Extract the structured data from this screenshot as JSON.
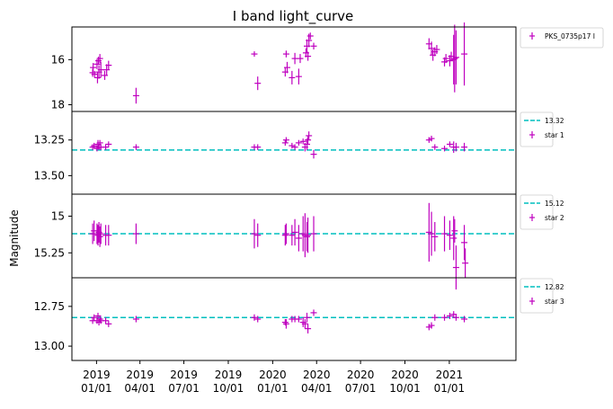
{
  "colors": {
    "data": "#bf00bf",
    "reference": "#00bfbf"
  },
  "chart_data": {
    "type": "scatter",
    "title": "I band light_curve",
    "ylabel": "Magnitude",
    "x_tick_labels": [
      {
        "date": "2019-01-01",
        "line1": "2019",
        "line2": "01/01"
      },
      {
        "date": "2019-04-01",
        "line1": "2019",
        "line2": "04/01"
      },
      {
        "date": "2019-07-01",
        "line1": "2019",
        "line2": "07/01"
      },
      {
        "date": "2019-10-01",
        "line1": "2019",
        "line2": "10/01"
      },
      {
        "date": "2020-01-01",
        "line1": "2020",
        "line2": "01/01"
      },
      {
        "date": "2020-04-01",
        "line1": "2020",
        "line2": "04/01"
      },
      {
        "date": "2020-07-01",
        "line1": "2020",
        "line2": "07/01"
      },
      {
        "date": "2020-10-01",
        "line1": "2020",
        "line2": "10/01"
      },
      {
        "date": "2021-01-01",
        "line1": "2021",
        "line2": "01/01"
      }
    ],
    "xlim": [
      "2018-11-11",
      "2021-05-19"
    ],
    "panels": [
      {
        "ylim": [
          18.3,
          14.55
        ],
        "yticks": [
          16,
          18
        ],
        "reference": null,
        "legend": [
          {
            "marker": "point",
            "label": "PKS_0735p17 I"
          }
        ],
        "points": [
          {
            "x": "2018-12-24",
            "y": 16.58,
            "err": 0.18
          },
          {
            "x": "2018-12-25",
            "y": 16.35,
            "err": 0.2
          },
          {
            "x": "2018-12-28",
            "y": 16.65,
            "err": 0.15
          },
          {
            "x": "2019-01-02",
            "y": 16.2,
            "err": 0.22
          },
          {
            "x": "2019-01-03",
            "y": 16.8,
            "err": 0.25
          },
          {
            "x": "2019-01-05",
            "y": 16.05,
            "err": 0.18
          },
          {
            "x": "2019-01-06",
            "y": 16.55,
            "err": 0.3
          },
          {
            "x": "2019-01-08",
            "y": 15.95,
            "err": 0.2
          },
          {
            "x": "2019-01-10",
            "y": 16.45,
            "err": 0.35
          },
          {
            "x": "2019-01-18",
            "y": 16.7,
            "err": 0.2
          },
          {
            "x": "2019-01-22",
            "y": 16.45,
            "err": 0.25
          },
          {
            "x": "2019-01-26",
            "y": 16.25,
            "err": 0.2
          },
          {
            "x": "2019-03-24",
            "y": 17.6,
            "err": 0.35
          },
          {
            "x": "2019-11-24",
            "y": 15.75,
            "err": 0.12
          },
          {
            "x": "2019-12-01",
            "y": 17.05,
            "err": 0.3
          },
          {
            "x": "2020-01-27",
            "y": 16.55,
            "err": 0.2
          },
          {
            "x": "2020-01-29",
            "y": 15.75,
            "err": 0.15
          },
          {
            "x": "2020-01-31",
            "y": 16.35,
            "err": 0.25
          },
          {
            "x": "2020-02-10",
            "y": 16.8,
            "err": 0.3
          },
          {
            "x": "2020-02-16",
            "y": 15.95,
            "err": 0.25
          },
          {
            "x": "2020-02-24",
            "y": 16.75,
            "err": 0.35
          },
          {
            "x": "2020-02-27",
            "y": 15.95,
            "err": 0.2
          },
          {
            "x": "2020-03-10",
            "y": 15.7,
            "err": 0.2
          },
          {
            "x": "2020-03-12",
            "y": 15.4,
            "err": 0.3
          },
          {
            "x": "2020-03-14",
            "y": 15.85,
            "err": 0.2
          },
          {
            "x": "2020-03-16",
            "y": 15.15,
            "err": 0.3
          },
          {
            "x": "2020-03-19",
            "y": 14.95,
            "err": 0.15
          },
          {
            "x": "2020-03-26",
            "y": 15.4,
            "err": 0.15
          },
          {
            "x": "2020-11-20",
            "y": 15.3,
            "err": 0.25
          },
          {
            "x": "2020-11-25",
            "y": 15.5,
            "err": 0.3
          },
          {
            "x": "2020-11-28",
            "y": 15.8,
            "err": 0.25
          },
          {
            "x": "2020-12-02",
            "y": 15.65,
            "err": 0.2
          },
          {
            "x": "2020-12-06",
            "y": 15.55,
            "err": 0.2
          },
          {
            "x": "2020-12-22",
            "y": 16.1,
            "err": 0.2
          },
          {
            "x": "2020-12-25",
            "y": 15.95,
            "err": 0.2
          },
          {
            "x": "2021-01-02",
            "y": 16.05,
            "err": 0.25
          },
          {
            "x": "2021-01-05",
            "y": 15.85,
            "err": 0.2
          },
          {
            "x": "2021-01-10",
            "y": 16.0,
            "err": 1.1
          },
          {
            "x": "2021-01-12",
            "y": 15.95,
            "err": 1.5
          },
          {
            "x": "2021-01-15",
            "y": 15.9,
            "err": 1.2
          },
          {
            "x": "2021-02-01",
            "y": 15.75,
            "err": 1.4
          }
        ]
      },
      {
        "ylim": [
          13.63,
          13.05
        ],
        "yticks": [
          13.25,
          13.5
        ],
        "reference": 13.32,
        "legend": [
          {
            "marker": "dash",
            "label": "13.32"
          },
          {
            "marker": "point",
            "label": "star 1"
          }
        ],
        "points": [
          {
            "x": "2018-12-24",
            "y": 13.3,
            "err": 0.02
          },
          {
            "x": "2018-12-27",
            "y": 13.29,
            "err": 0.02
          },
          {
            "x": "2019-01-02",
            "y": 13.31,
            "err": 0.02
          },
          {
            "x": "2019-01-04",
            "y": 13.28,
            "err": 0.03
          },
          {
            "x": "2019-01-06",
            "y": 13.3,
            "err": 0.02
          },
          {
            "x": "2019-01-08",
            "y": 13.27,
            "err": 0.02
          },
          {
            "x": "2019-01-10",
            "y": 13.3,
            "err": 0.02
          },
          {
            "x": "2019-01-20",
            "y": 13.3,
            "err": 0.02
          },
          {
            "x": "2019-01-26",
            "y": 13.28,
            "err": 0.02
          },
          {
            "x": "2019-03-24",
            "y": 13.3,
            "err": 0.02
          },
          {
            "x": "2019-11-24",
            "y": 13.3,
            "err": 0.02
          },
          {
            "x": "2019-12-01",
            "y": 13.3,
            "err": 0.02
          },
          {
            "x": "2020-01-27",
            "y": 13.27,
            "err": 0.02
          },
          {
            "x": "2020-01-29",
            "y": 13.25,
            "err": 0.02
          },
          {
            "x": "2020-02-10",
            "y": 13.29,
            "err": 0.02
          },
          {
            "x": "2020-02-16",
            "y": 13.3,
            "err": 0.02
          },
          {
            "x": "2020-02-24",
            "y": 13.27,
            "err": 0.02
          },
          {
            "x": "2020-03-04",
            "y": 13.26,
            "err": 0.02
          },
          {
            "x": "2020-03-08",
            "y": 13.3,
            "err": 0.03
          },
          {
            "x": "2020-03-12",
            "y": 13.28,
            "err": 0.04
          },
          {
            "x": "2020-03-14",
            "y": 13.25,
            "err": 0.03
          },
          {
            "x": "2020-03-16",
            "y": 13.22,
            "err": 0.03
          },
          {
            "x": "2020-03-26",
            "y": 13.35,
            "err": 0.03
          },
          {
            "x": "2020-11-20",
            "y": 13.25,
            "err": 0.02
          },
          {
            "x": "2020-11-25",
            "y": 13.24,
            "err": 0.02
          },
          {
            "x": "2020-12-02",
            "y": 13.3,
            "err": 0.02
          },
          {
            "x": "2020-12-22",
            "y": 13.31,
            "err": 0.02
          },
          {
            "x": "2021-01-02",
            "y": 13.28,
            "err": 0.02
          },
          {
            "x": "2021-01-10",
            "y": 13.3,
            "err": 0.04
          },
          {
            "x": "2021-01-15",
            "y": 13.3,
            "err": 0.03
          },
          {
            "x": "2021-02-01",
            "y": 13.3,
            "err": 0.03
          }
        ]
      },
      {
        "ylim": [
          15.42,
          14.85
        ],
        "yticks": [
          15.0,
          15.25
        ],
        "reference": 15.12,
        "legend": [
          {
            "marker": "dash",
            "label": "15.12"
          },
          {
            "marker": "point",
            "label": "star 2"
          }
        ],
        "points": [
          {
            "x": "2018-12-24",
            "y": 15.12,
            "err": 0.07
          },
          {
            "x": "2018-12-27",
            "y": 15.1,
            "err": 0.07
          },
          {
            "x": "2019-01-02",
            "y": 15.12,
            "err": 0.07
          },
          {
            "x": "2019-01-04",
            "y": 15.13,
            "err": 0.07
          },
          {
            "x": "2019-01-06",
            "y": 15.11,
            "err": 0.07
          },
          {
            "x": "2019-01-08",
            "y": 15.14,
            "err": 0.07
          },
          {
            "x": "2019-01-10",
            "y": 15.12,
            "err": 0.07
          },
          {
            "x": "2019-01-20",
            "y": 15.13,
            "err": 0.07
          },
          {
            "x": "2019-01-26",
            "y": 15.13,
            "err": 0.07
          },
          {
            "x": "2019-03-24",
            "y": 15.12,
            "err": 0.07
          },
          {
            "x": "2019-11-24",
            "y": 15.12,
            "err": 0.1
          },
          {
            "x": "2019-12-01",
            "y": 15.13,
            "err": 0.08
          },
          {
            "x": "2020-01-27",
            "y": 15.13,
            "err": 0.07
          },
          {
            "x": "2020-01-29",
            "y": 15.12,
            "err": 0.07
          },
          {
            "x": "2020-02-10",
            "y": 15.13,
            "err": 0.07
          },
          {
            "x": "2020-02-16",
            "y": 15.11,
            "err": 0.09
          },
          {
            "x": "2020-02-24",
            "y": 15.15,
            "err": 0.09
          },
          {
            "x": "2020-03-04",
            "y": 15.12,
            "err": 0.12
          },
          {
            "x": "2020-03-08",
            "y": 15.13,
            "err": 0.15
          },
          {
            "x": "2020-03-12",
            "y": 15.14,
            "err": 0.1
          },
          {
            "x": "2020-03-14",
            "y": 15.13,
            "err": 0.12
          },
          {
            "x": "2020-03-26",
            "y": 15.12,
            "err": 0.12
          },
          {
            "x": "2020-11-20",
            "y": 15.11,
            "err": 0.2
          },
          {
            "x": "2020-11-25",
            "y": 15.12,
            "err": 0.15
          },
          {
            "x": "2020-12-02",
            "y": 15.14,
            "err": 0.1
          },
          {
            "x": "2020-12-22",
            "y": 15.12,
            "err": 0.12
          },
          {
            "x": "2021-01-02",
            "y": 15.13,
            "err": 0.1
          },
          {
            "x": "2021-01-10",
            "y": 15.15,
            "err": 0.15
          },
          {
            "x": "2021-01-12",
            "y": 15.1,
            "err": 0.08
          },
          {
            "x": "2021-01-15",
            "y": 15.35,
            "err": 0.15
          },
          {
            "x": "2021-02-01",
            "y": 15.18,
            "err": 0.12
          },
          {
            "x": "2021-02-03",
            "y": 15.32,
            "err": 0.1
          }
        ]
      },
      {
        "ylim": [
          13.09,
          12.57
        ],
        "yticks": [
          12.75,
          13.0
        ],
        "reference": 12.82,
        "legend": [
          {
            "marker": "dash",
            "label": "12.82"
          },
          {
            "marker": "point",
            "label": "star 3"
          }
        ],
        "points": [
          {
            "x": "2018-12-24",
            "y": 12.84,
            "err": 0.02
          },
          {
            "x": "2018-12-27",
            "y": 12.82,
            "err": 0.02
          },
          {
            "x": "2019-01-02",
            "y": 12.84,
            "err": 0.02
          },
          {
            "x": "2019-01-04",
            "y": 12.81,
            "err": 0.02
          },
          {
            "x": "2019-01-06",
            "y": 12.85,
            "err": 0.02
          },
          {
            "x": "2019-01-08",
            "y": 12.83,
            "err": 0.02
          },
          {
            "x": "2019-01-10",
            "y": 12.84,
            "err": 0.02
          },
          {
            "x": "2019-01-20",
            "y": 12.84,
            "err": 0.02
          },
          {
            "x": "2019-01-26",
            "y": 12.86,
            "err": 0.02
          },
          {
            "x": "2019-03-24",
            "y": 12.83,
            "err": 0.02
          },
          {
            "x": "2019-11-24",
            "y": 12.82,
            "err": 0.02
          },
          {
            "x": "2019-12-01",
            "y": 12.83,
            "err": 0.02
          },
          {
            "x": "2020-01-27",
            "y": 12.85,
            "err": 0.02
          },
          {
            "x": "2020-01-29",
            "y": 12.86,
            "err": 0.03
          },
          {
            "x": "2020-02-10",
            "y": 12.83,
            "err": 0.02
          },
          {
            "x": "2020-02-16",
            "y": 12.83,
            "err": 0.02
          },
          {
            "x": "2020-02-24",
            "y": 12.83,
            "err": 0.02
          },
          {
            "x": "2020-03-04",
            "y": 12.85,
            "err": 0.03
          },
          {
            "x": "2020-03-08",
            "y": 12.86,
            "err": 0.03
          },
          {
            "x": "2020-03-12",
            "y": 12.82,
            "err": 0.03
          },
          {
            "x": "2020-03-14",
            "y": 12.89,
            "err": 0.03
          },
          {
            "x": "2020-03-26",
            "y": 12.79,
            "err": 0.02
          },
          {
            "x": "2020-11-20",
            "y": 12.88,
            "err": 0.02
          },
          {
            "x": "2020-11-25",
            "y": 12.87,
            "err": 0.02
          },
          {
            "x": "2020-12-02",
            "y": 12.82,
            "err": 0.02
          },
          {
            "x": "2020-12-22",
            "y": 12.82,
            "err": 0.02
          },
          {
            "x": "2021-01-02",
            "y": 12.81,
            "err": 0.02
          },
          {
            "x": "2021-01-10",
            "y": 12.8,
            "err": 0.02
          },
          {
            "x": "2021-01-15",
            "y": 12.82,
            "err": 0.02
          },
          {
            "x": "2021-02-01",
            "y": 12.83,
            "err": 0.02
          }
        ]
      }
    ]
  }
}
